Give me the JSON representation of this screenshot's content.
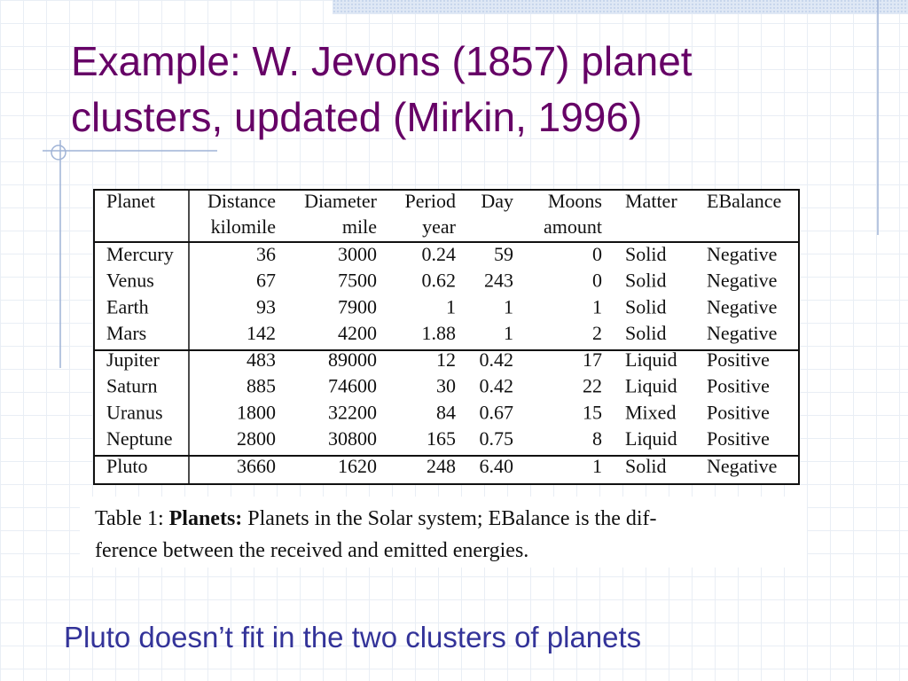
{
  "title": {
    "lines": [
      "Example: W. Jevons (1857) planet",
      "clusters, updated (Mirkin, 1996)"
    ]
  },
  "table": {
    "header": [
      {
        "name": "Planet"
      },
      {
        "name": "Distance",
        "unit": "kilomile"
      },
      {
        "name": "Diameter",
        "unit": "mile"
      },
      {
        "name": "Period",
        "unit": "year"
      },
      {
        "name": "Day"
      },
      {
        "name": "Moons",
        "unit": "amount"
      },
      {
        "name": "Matter"
      },
      {
        "name": "EBalance"
      }
    ],
    "groups": [
      [
        [
          "Mercury",
          "36",
          "3000",
          "0.24",
          "59",
          "0",
          "Solid",
          "Negative"
        ],
        [
          "Venus",
          "67",
          "7500",
          "0.62",
          "243",
          "0",
          "Solid",
          "Negative"
        ],
        [
          "Earth",
          "93",
          "7900",
          "1",
          "1",
          "1",
          "Solid",
          "Negative"
        ],
        [
          "Mars",
          "142",
          "4200",
          "1.88",
          "1",
          "2",
          "Solid",
          "Negative"
        ]
      ],
      [
        [
          "Jupiter",
          "483",
          "89000",
          "12",
          "0.42",
          "17",
          "Liquid",
          "Positive"
        ],
        [
          "Saturn",
          "885",
          "74600",
          "30",
          "0.42",
          "22",
          "Liquid",
          "Positive"
        ],
        [
          "Uranus",
          "1800",
          "32200",
          "84",
          "0.67",
          "15",
          "Mixed",
          "Positive"
        ],
        [
          "Neptune",
          "2800",
          "30800",
          "165",
          "0.75",
          "8",
          "Liquid",
          "Positive"
        ]
      ],
      [
        [
          "Pluto",
          "3660",
          "1620",
          "248",
          "6.40",
          "1",
          "Solid",
          "Negative"
        ]
      ]
    ]
  },
  "caption": {
    "label": "Table 1:",
    "bold": "Planets:",
    "lines": [
      "Planets in the Solar system; EBalance is the dif-",
      "ference between the received and emitted energies."
    ]
  },
  "footer": "Pluto doesn’t fit in the two clusters of planets"
}
